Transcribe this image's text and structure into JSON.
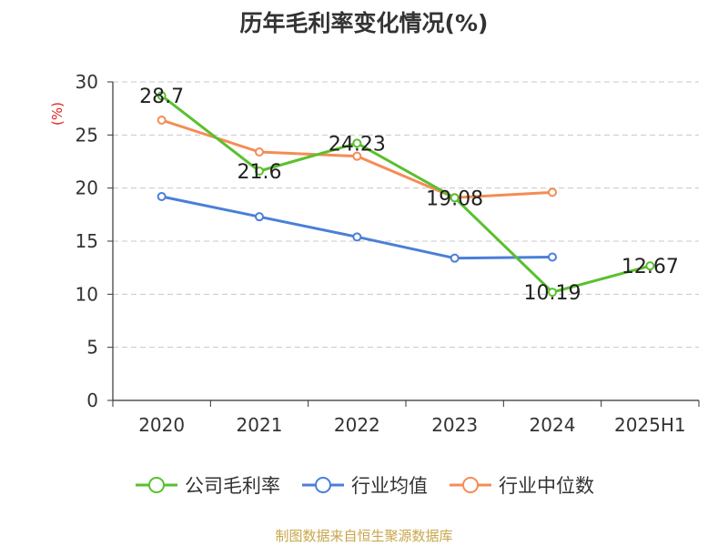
{
  "chart_data": {
    "type": "line",
    "title": "历年毛利率变化情况(%)",
    "ylabel": "(%)",
    "xlabel": "",
    "categories": [
      "2020",
      "2021",
      "2022",
      "2023",
      "2024",
      "2025H1"
    ],
    "ylim": [
      0,
      30
    ],
    "yticks": [
      0,
      5,
      10,
      15,
      20,
      25,
      30
    ],
    "grid": "horizontal-dashed",
    "legend_position": "bottom",
    "series": [
      {
        "name": "公司毛利率",
        "color": "#5ac02e",
        "values": [
          28.7,
          21.6,
          24.23,
          19.08,
          10.19,
          12.67
        ],
        "labels": [
          "28.7",
          "21.6",
          "24.23",
          "19.08",
          "10.19",
          "12.67"
        ]
      },
      {
        "name": "行业均值",
        "color": "#4a7fd8",
        "values": [
          19.2,
          17.3,
          15.4,
          13.4,
          13.5,
          null
        ]
      },
      {
        "name": "行业中位数",
        "color": "#f58c55",
        "values": [
          26.4,
          23.4,
          23.0,
          19.1,
          19.6,
          null
        ]
      }
    ]
  },
  "footer": {
    "source": "制图数据来自恒生聚源数据库"
  }
}
